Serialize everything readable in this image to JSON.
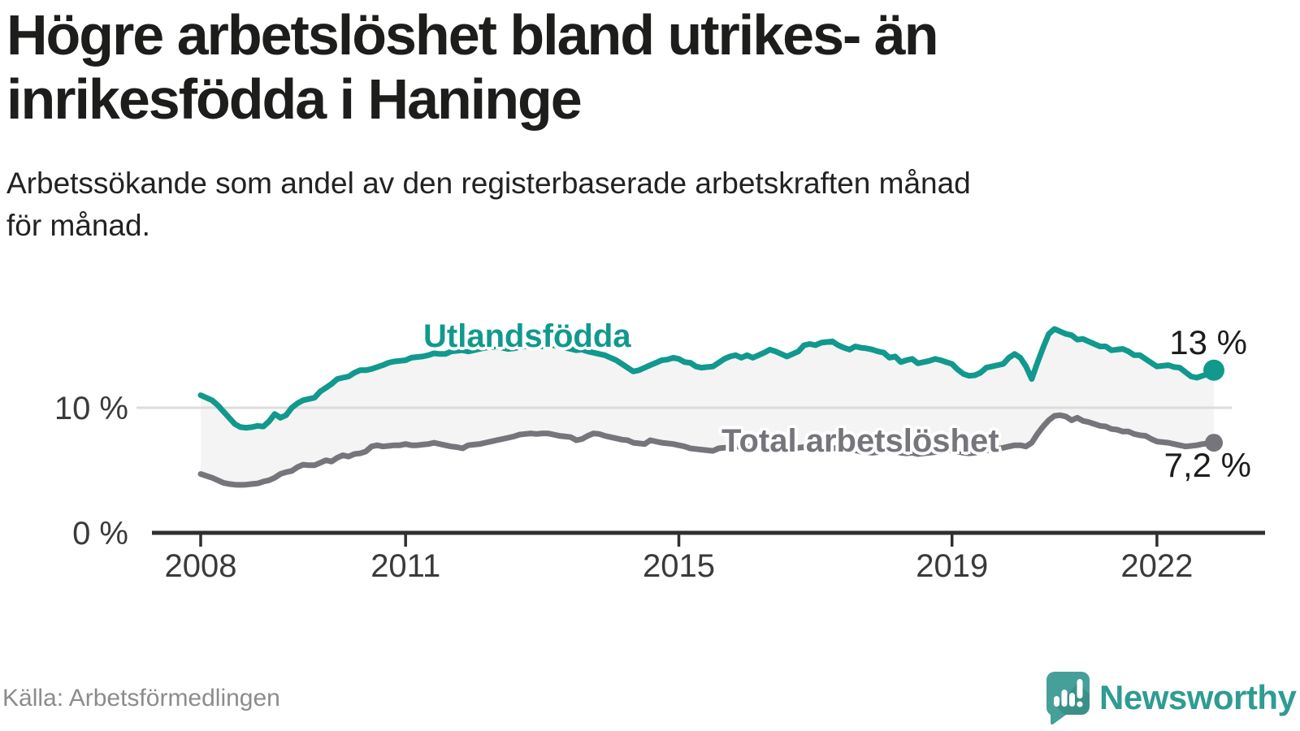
{
  "title": "Högre arbetslöshet bland utrikes- än inrikesfödda i Haninge",
  "title_lines": [
    "Högre arbetslöshet bland utrikes- än",
    "inrikesfödda i Haninge"
  ],
  "subtitle_lines": [
    "Arbetssökande som andel av den registerbaserade arbetskraften månad",
    "för månad."
  ],
  "source": "Källa: Arbetsförmedlingen",
  "logo": {
    "text": "Newsworthy"
  },
  "colors": {
    "foreign_born_line": "#11998e",
    "total_line": "#76757b",
    "fill_between": "#f4f4f4",
    "gridline": "#dcdcdc",
    "axis": "#2f2f2f",
    "axis_text": "#3a3a3a",
    "heading_text": "#1d1d1b",
    "source_text": "#8c8c8c",
    "logo_icon": "#46a099",
    "logo_text": "#2f9c93"
  },
  "chart_data": {
    "type": "line",
    "title": "Högre arbetslöshet bland utrikes- än inrikesfödda i Haninge",
    "subtitle": "Arbetssökande som andel av den registerbaserade arbetskraften månad för månad.",
    "frequency": "monthly",
    "x_start": "2008-01",
    "x_end": "2022-11",
    "x_ticks": [
      "2008",
      "2011",
      "2015",
      "2019",
      "2022"
    ],
    "y_axis": [
      {
        "label": "0 %",
        "value": 0
      },
      {
        "label": "10 %",
        "value": 10
      }
    ],
    "ylim": [
      0,
      17.5
    ],
    "grid": "y-only",
    "fill_between_series": true,
    "legend_position": "inline-labels",
    "series": [
      {
        "name": "Utlandsfödda",
        "end_label": "13 %",
        "end_value": 13.0,
        "color": "#11998e",
        "values": [
          11.0,
          10.8,
          10.6,
          10.2,
          9.7,
          9.2,
          8.7,
          8.45,
          8.4,
          8.45,
          8.55,
          8.5,
          8.9,
          9.5,
          9.2,
          9.4,
          10.0,
          10.35,
          10.6,
          10.7,
          10.8,
          11.3,
          11.6,
          11.9,
          12.3,
          12.4,
          12.5,
          12.8,
          13.0,
          13.0,
          13.1,
          13.25,
          13.4,
          13.6,
          13.7,
          13.75,
          13.8,
          14.0,
          14.05,
          14.1,
          14.2,
          14.35,
          14.3,
          14.3,
          14.5,
          14.55,
          14.6,
          14.5,
          14.6,
          14.7,
          14.8,
          14.85,
          14.9,
          14.8,
          14.7,
          14.75,
          14.85,
          14.9,
          14.95,
          15.0,
          14.9,
          14.95,
          15.0,
          14.9,
          14.8,
          14.7,
          14.6,
          14.65,
          14.5,
          14.4,
          14.3,
          14.2,
          14.0,
          13.8,
          13.5,
          13.2,
          12.9,
          13.0,
          13.2,
          13.4,
          13.6,
          13.8,
          13.85,
          14.0,
          13.9,
          13.65,
          13.6,
          13.3,
          13.2,
          13.25,
          13.3,
          13.6,
          13.9,
          14.1,
          14.2,
          14.0,
          14.2,
          14.0,
          14.2,
          14.4,
          14.65,
          14.5,
          14.3,
          14.1,
          14.3,
          14.5,
          15.0,
          15.1,
          15.0,
          15.2,
          15.25,
          15.3,
          15.0,
          14.8,
          14.65,
          14.9,
          14.8,
          14.75,
          14.65,
          14.5,
          14.4,
          14.0,
          14.1,
          13.65,
          13.8,
          13.9,
          13.55,
          13.65,
          13.75,
          13.9,
          13.8,
          13.65,
          13.5,
          13.05,
          12.7,
          12.55,
          12.6,
          12.8,
          13.2,
          13.3,
          13.4,
          13.5,
          14.0,
          14.3,
          14.0,
          13.3,
          12.3,
          13.6,
          14.8,
          15.9,
          16.3,
          16.1,
          15.9,
          15.8,
          15.45,
          15.5,
          15.3,
          15.1,
          14.9,
          14.9,
          14.6,
          14.65,
          14.7,
          14.5,
          14.2,
          14.2,
          13.9,
          13.6,
          13.3,
          13.35,
          13.4,
          13.25,
          13.2,
          12.85,
          12.5,
          12.4,
          12.55,
          12.7,
          13.0
        ]
      },
      {
        "name": "Total arbetslöshet",
        "end_label": "7,2 %",
        "end_value": 7.2,
        "color": "#76757b",
        "values": [
          4.7,
          4.55,
          4.4,
          4.2,
          4.0,
          3.9,
          3.85,
          3.83,
          3.85,
          3.9,
          3.95,
          4.1,
          4.2,
          4.4,
          4.7,
          4.85,
          4.95,
          5.25,
          5.45,
          5.4,
          5.4,
          5.6,
          5.8,
          5.7,
          6.0,
          6.2,
          6.1,
          6.3,
          6.35,
          6.5,
          6.9,
          7.0,
          6.9,
          6.95,
          7.0,
          7.0,
          7.1,
          7.0,
          7.0,
          7.05,
          7.1,
          7.2,
          7.1,
          7.0,
          6.9,
          6.85,
          6.75,
          7.0,
          7.05,
          7.1,
          7.2,
          7.3,
          7.4,
          7.5,
          7.6,
          7.7,
          7.85,
          7.9,
          7.95,
          7.9,
          7.95,
          7.95,
          7.85,
          7.75,
          7.7,
          7.65,
          7.4,
          7.5,
          7.75,
          7.95,
          7.9,
          7.75,
          7.65,
          7.55,
          7.45,
          7.4,
          7.2,
          7.15,
          7.1,
          7.4,
          7.3,
          7.2,
          7.15,
          7.1,
          7.0,
          6.9,
          6.75,
          6.7,
          6.65,
          6.6,
          6.55,
          6.75,
          6.8,
          6.85,
          6.9,
          6.85,
          6.9,
          6.85,
          6.8,
          6.75,
          6.7,
          6.65,
          6.6,
          6.7,
          6.75,
          6.8,
          6.85,
          6.8,
          6.85,
          6.9,
          6.85,
          6.8,
          6.7,
          6.6,
          6.55,
          6.6,
          6.5,
          6.45,
          6.4,
          6.45,
          6.5,
          6.55,
          6.5,
          6.4,
          6.35,
          6.4,
          6.3,
          6.35,
          6.4,
          6.45,
          6.5,
          6.6,
          6.6,
          6.5,
          6.4,
          6.35,
          6.4,
          6.5,
          6.6,
          6.65,
          6.7,
          6.8,
          6.9,
          7.0,
          7.0,
          6.9,
          7.2,
          7.9,
          8.5,
          9.0,
          9.35,
          9.4,
          9.3,
          9.0,
          9.2,
          8.95,
          8.85,
          8.7,
          8.55,
          8.5,
          8.3,
          8.25,
          8.1,
          8.1,
          7.9,
          7.8,
          7.75,
          7.5,
          7.3,
          7.25,
          7.2,
          7.1,
          7.0,
          6.9,
          6.95,
          7.0,
          7.1,
          7.15,
          7.2
        ]
      }
    ]
  }
}
